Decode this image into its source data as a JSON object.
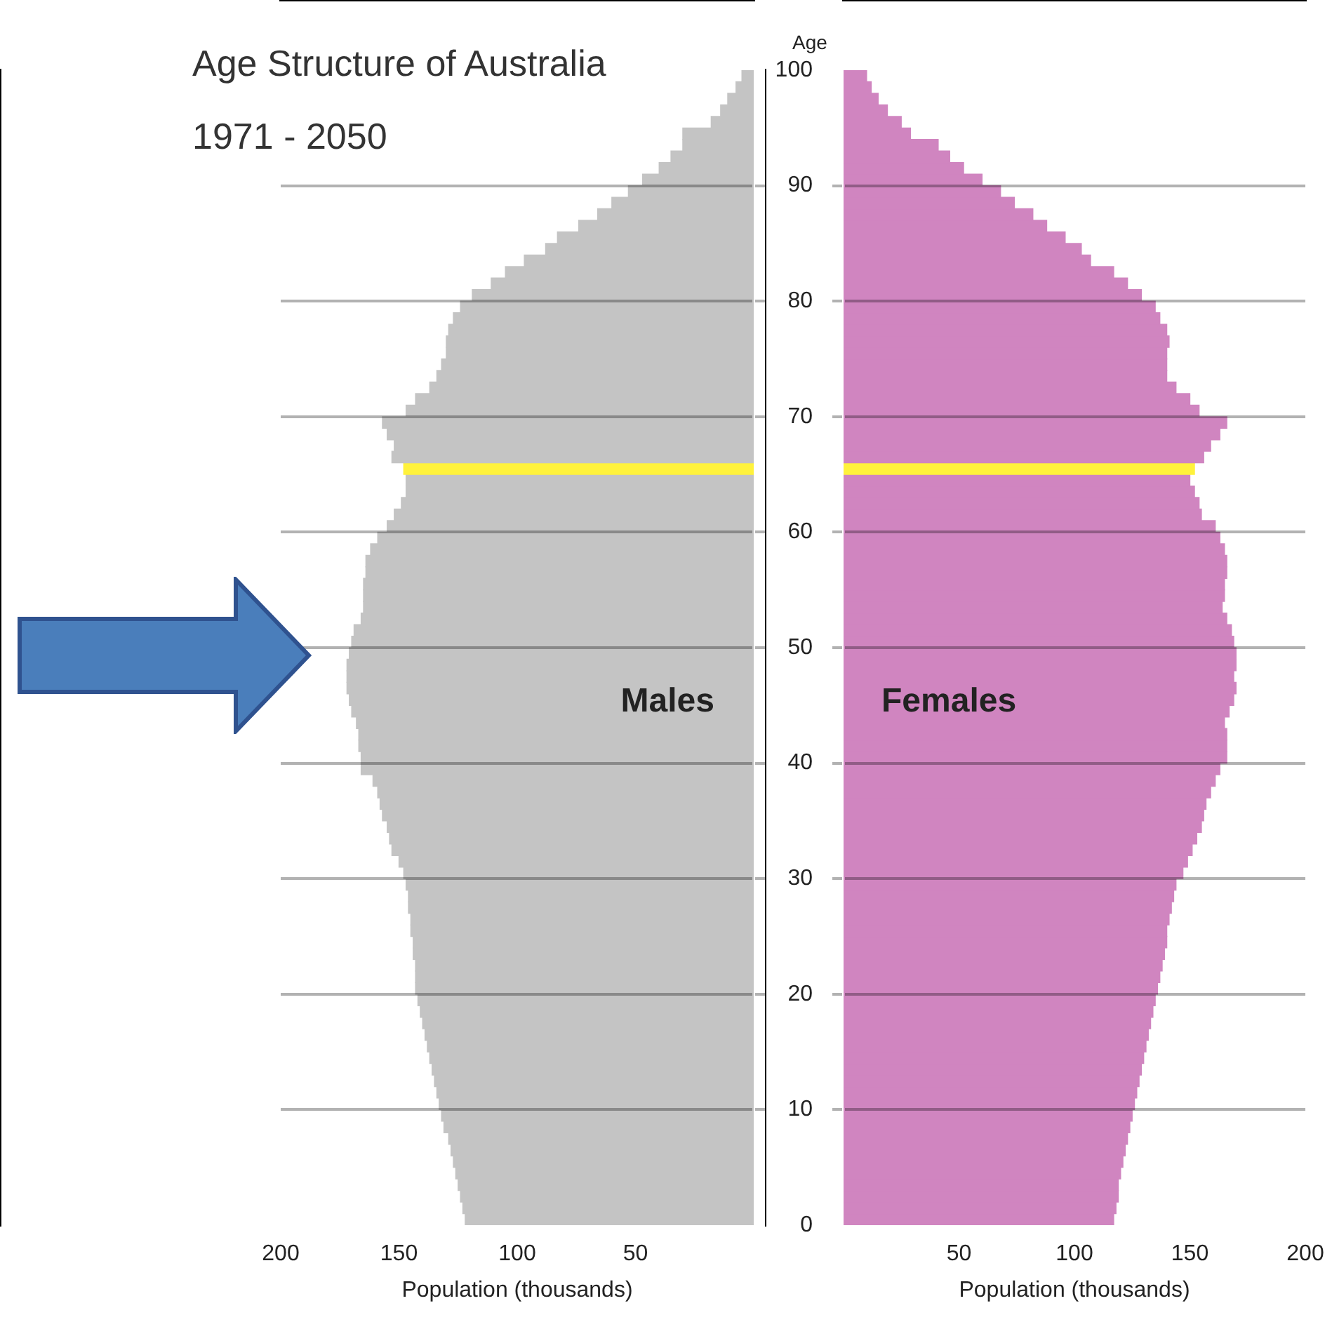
{
  "chart_data": [
    {
      "type": "histogram",
      "orientation": "horizontal",
      "title": "Age Structure of Australia",
      "subtitle": "1971 - 2050",
      "xlabel": "Population (thousands)",
      "annotations": [
        "Males"
      ],
      "bins": [
        0,
        1,
        2,
        3,
        4,
        5,
        6,
        7,
        8,
        9,
        10,
        11,
        12,
        13,
        14,
        15,
        16,
        17,
        18,
        19,
        20,
        21,
        22,
        23,
        24,
        25,
        26,
        27,
        28,
        29,
        30,
        31,
        32,
        33,
        34,
        35,
        36,
        37,
        38,
        39,
        40,
        41,
        42,
        43,
        44,
        45,
        46,
        47,
        48,
        49,
        50,
        51,
        52,
        53,
        54,
        55,
        56,
        57,
        58,
        59,
        60,
        61,
        62,
        63,
        64,
        65,
        66,
        67,
        68,
        69,
        70,
        71,
        72,
        73,
        74,
        75,
        76,
        77,
        78,
        79,
        80,
        81,
        82,
        83,
        84,
        85,
        86,
        87,
        88,
        89,
        90,
        91,
        92,
        93,
        94,
        95,
        96,
        97,
        98,
        99,
        100
      ],
      "values": [
        122,
        123,
        124,
        125,
        126,
        127,
        128,
        129,
        131,
        132,
        133,
        134,
        135,
        136,
        137,
        138,
        139,
        140,
        141,
        142,
        143,
        143,
        143,
        144,
        144,
        145,
        145,
        146,
        146,
        147,
        148,
        150,
        153,
        154,
        155,
        157,
        158,
        159,
        161,
        166,
        166,
        167,
        167,
        168,
        170,
        171,
        172,
        172,
        172,
        171,
        170,
        169,
        166,
        165,
        165,
        165,
        164,
        164,
        162,
        159,
        155,
        152,
        149,
        147,
        147,
        148,
        153,
        152,
        155,
        157,
        147,
        143,
        137,
        134,
        132,
        130,
        130,
        129,
        127,
        124,
        119,
        111,
        105,
        97,
        88,
        83,
        74,
        66,
        60,
        53,
        47,
        40,
        35,
        30,
        30,
        18,
        14,
        11,
        7.5,
        5
      ],
      "colors": [
        "#c4c4c4",
        "#c4c4c4",
        "#c4c4c4",
        "#c4c4c4",
        "#c4c4c4",
        "#c4c4c4",
        "#c4c4c4",
        "#c4c4c4",
        "#c4c4c4",
        "#c4c4c4",
        "#c4c4c4",
        "#c4c4c4",
        "#c4c4c4",
        "#c4c4c4",
        "#c4c4c4",
        "#c4c4c4",
        "#c4c4c4",
        "#c4c4c4",
        "#c4c4c4",
        "#c4c4c4",
        "#c4c4c4",
        "#c4c4c4",
        "#c4c4c4",
        "#c4c4c4",
        "#c4c4c4",
        "#c4c4c4",
        "#c4c4c4",
        "#c4c4c4",
        "#c4c4c4",
        "#c4c4c4",
        "#c4c4c4",
        "#c4c4c4",
        "#c4c4c4",
        "#c4c4c4",
        "#c4c4c4",
        "#c4c4c4",
        "#c4c4c4",
        "#c4c4c4",
        "#c4c4c4",
        "#c4c4c4",
        "#c4c4c4",
        "#c4c4c4",
        "#c4c4c4",
        "#c4c4c4",
        "#c4c4c4",
        "#c4c4c4",
        "#c4c4c4",
        "#c4c4c4",
        "#c4c4c4",
        "#c4c4c4",
        "#c4c4c4",
        "#c4c4c4",
        "#c4c4c4",
        "#c4c4c4",
        "#c4c4c4",
        "#c4c4c4",
        "#c4c4c4",
        "#c4c4c4",
        "#c4c4c4",
        "#c4c4c4",
        "#c4c4c4",
        "#c4c4c4",
        "#c4c4c4",
        "#c4c4c4",
        "#c4c4c4",
        "#fff23c",
        "#c4c4c4",
        "#c4c4c4",
        "#c4c4c4",
        "#c4c4c4",
        "#c4c4c4",
        "#c4c4c4",
        "#c4c4c4",
        "#c4c4c4",
        "#c4c4c4",
        "#c4c4c4",
        "#c4c4c4",
        "#c4c4c4",
        "#c4c4c4",
        "#c4c4c4",
        "#c4c4c4",
        "#c4c4c4",
        "#c4c4c4",
        "#c4c4c4",
        "#c4c4c4",
        "#c4c4c4",
        "#c4c4c4",
        "#c4c4c4",
        "#c4c4c4",
        "#c4c4c4",
        "#c4c4c4",
        "#c4c4c4",
        "#c4c4c4",
        "#c4c4c4",
        "#c4c4c4",
        "#c4c4c4",
        "#c4c4c4",
        "#c4c4c4",
        "#c4c4c4",
        "#c4c4c4"
      ],
      "xlim": [
        200,
        0
      ],
      "xticks": [
        200,
        150,
        100,
        50
      ],
      "ylim": [
        0,
        100
      ],
      "yticks": [
        0,
        10,
        20,
        30,
        40,
        50,
        60,
        70,
        80,
        90,
        100
      ],
      "grid": "y",
      "tick_labels": "x"
    },
    {
      "type": "histogram",
      "orientation": "horizontal",
      "ylabel": "Age",
      "xlabel": "Population (thousands)",
      "annotations": [
        "Females"
      ],
      "bins": [
        0,
        1,
        2,
        3,
        4,
        5,
        6,
        7,
        8,
        9,
        10,
        11,
        12,
        13,
        14,
        15,
        16,
        17,
        18,
        19,
        20,
        21,
        22,
        23,
        24,
        25,
        26,
        27,
        28,
        29,
        30,
        31,
        32,
        33,
        34,
        35,
        36,
        37,
        38,
        39,
        40,
        41,
        42,
        43,
        44,
        45,
        46,
        47,
        48,
        49,
        50,
        51,
        52,
        53,
        54,
        55,
        56,
        57,
        58,
        59,
        60,
        61,
        62,
        63,
        64,
        65,
        66,
        67,
        68,
        69,
        70,
        71,
        72,
        73,
        74,
        75,
        76,
        77,
        78,
        79,
        80,
        81,
        82,
        83,
        84,
        85,
        86,
        87,
        88,
        89,
        90,
        91,
        92,
        93,
        94,
        95,
        96,
        97,
        98,
        99,
        100
      ],
      "values": [
        117,
        118,
        119,
        119,
        120,
        121,
        122,
        123,
        124,
        125,
        126,
        127,
        128,
        129,
        130,
        131,
        132,
        133,
        134,
        135,
        136,
        137,
        138,
        139,
        140,
        140,
        141,
        142,
        143,
        144,
        147,
        149,
        151,
        153,
        155,
        156,
        157,
        159,
        161,
        163,
        166,
        166,
        166,
        165,
        167,
        169,
        170,
        169,
        170,
        170,
        169,
        168,
        166,
        164,
        165,
        165,
        166,
        166,
        165,
        163,
        161,
        155,
        154,
        152,
        150,
        152,
        156,
        159,
        163,
        166,
        154,
        150,
        144,
        140,
        140,
        140,
        141,
        140,
        137,
        135,
        129,
        123,
        117,
        107,
        103,
        96,
        88,
        82,
        74,
        68,
        60,
        52,
        46,
        41,
        29,
        25,
        19,
        15,
        12,
        10
      ],
      "colors": [
        "#d085c0",
        "#d085c0",
        "#d085c0",
        "#d085c0",
        "#d085c0",
        "#d085c0",
        "#d085c0",
        "#d085c0",
        "#d085c0",
        "#d085c0",
        "#d085c0",
        "#d085c0",
        "#d085c0",
        "#d085c0",
        "#d085c0",
        "#d085c0",
        "#d085c0",
        "#d085c0",
        "#d085c0",
        "#d085c0",
        "#d085c0",
        "#d085c0",
        "#d085c0",
        "#d085c0",
        "#d085c0",
        "#d085c0",
        "#d085c0",
        "#d085c0",
        "#d085c0",
        "#d085c0",
        "#d085c0",
        "#d085c0",
        "#d085c0",
        "#d085c0",
        "#d085c0",
        "#d085c0",
        "#d085c0",
        "#d085c0",
        "#d085c0",
        "#d085c0",
        "#d085c0",
        "#d085c0",
        "#d085c0",
        "#d085c0",
        "#d085c0",
        "#d085c0",
        "#d085c0",
        "#d085c0",
        "#d085c0",
        "#d085c0",
        "#d085c0",
        "#d085c0",
        "#d085c0",
        "#d085c0",
        "#d085c0",
        "#d085c0",
        "#d085c0",
        "#d085c0",
        "#d085c0",
        "#d085c0",
        "#d085c0",
        "#d085c0",
        "#d085c0",
        "#d085c0",
        "#d085c0",
        "#fff23c",
        "#d085c0",
        "#d085c0",
        "#d085c0",
        "#d085c0",
        "#d085c0",
        "#d085c0",
        "#d085c0",
        "#d085c0",
        "#d085c0",
        "#d085c0",
        "#d085c0",
        "#d085c0",
        "#d085c0",
        "#d085c0",
        "#d085c0",
        "#d085c0",
        "#d085c0",
        "#d085c0",
        "#d085c0",
        "#d085c0",
        "#d085c0",
        "#d085c0",
        "#d085c0",
        "#d085c0",
        "#d085c0",
        "#d085c0",
        "#d085c0",
        "#d085c0",
        "#d085c0",
        "#d085c0",
        "#d085c0",
        "#d085c0",
        "#d085c0",
        "#d085c0"
      ],
      "xlim": [
        0,
        200
      ],
      "xticks": [
        50,
        100,
        150,
        200
      ],
      "ylim": [
        0,
        100
      ],
      "yticks": [
        0,
        10,
        20,
        30,
        40,
        50,
        60,
        70,
        80,
        90,
        100
      ],
      "grid": "y"
    }
  ]
}
